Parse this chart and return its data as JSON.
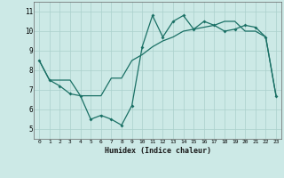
{
  "xlabel": "Humidex (Indice chaleur)",
  "line_color": "#1a7065",
  "background_color": "#cce9e6",
  "grid_color": "#aad0cc",
  "ylim": [
    4.5,
    11.5
  ],
  "xlim": [
    -0.5,
    23.5
  ],
  "yticks": [
    5,
    6,
    7,
    8,
    9,
    10,
    11
  ],
  "xticks": [
    0,
    1,
    2,
    3,
    4,
    5,
    6,
    7,
    8,
    9,
    10,
    11,
    12,
    13,
    14,
    15,
    16,
    17,
    18,
    19,
    20,
    21,
    22,
    23
  ],
  "series1_x": [
    0,
    1,
    2,
    3,
    4,
    5,
    6,
    7,
    8,
    9,
    10,
    11,
    12,
    13,
    14,
    15,
    16,
    17,
    18,
    19,
    20,
    21,
    22,
    23
  ],
  "series1_y": [
    8.5,
    7.5,
    7.2,
    6.8,
    6.7,
    5.5,
    5.7,
    5.5,
    5.2,
    6.2,
    9.2,
    10.8,
    9.7,
    10.5,
    10.8,
    10.1,
    10.5,
    10.3,
    10.0,
    10.1,
    10.3,
    10.2,
    9.7,
    6.7
  ],
  "series2_x": [
    0,
    1,
    2,
    3,
    4,
    5,
    6,
    7,
    8,
    9,
    10,
    11,
    12,
    13,
    14,
    15,
    16,
    17,
    18,
    19,
    20,
    21,
    22,
    23
  ],
  "series2_y": [
    8.5,
    7.5,
    7.5,
    7.5,
    6.7,
    6.7,
    6.7,
    7.6,
    7.6,
    8.5,
    8.8,
    9.2,
    9.5,
    9.7,
    10.0,
    10.1,
    10.2,
    10.3,
    10.5,
    10.5,
    10.0,
    10.0,
    9.7,
    6.7
  ]
}
